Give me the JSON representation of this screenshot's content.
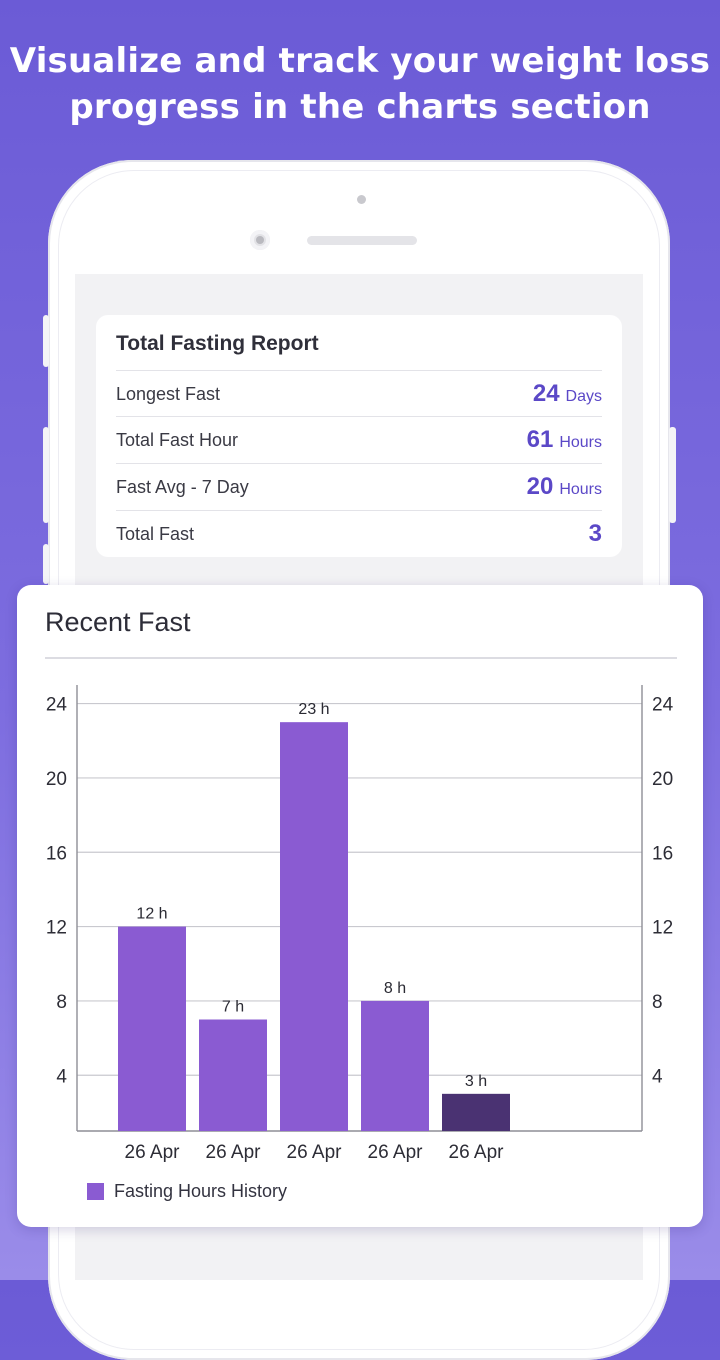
{
  "headline": {
    "line1": "Visualize and track your weight loss",
    "line2": "progress in the charts section"
  },
  "report": {
    "title": "Total Fasting Report",
    "rows": [
      {
        "label": "Longest Fast",
        "value": "24",
        "unit": "Days"
      },
      {
        "label": "Total Fast Hour",
        "value": "61",
        "unit": "Hours"
      },
      {
        "label": "Fast Avg - 7 Day",
        "value": "20",
        "unit": "Hours"
      },
      {
        "label": "Total Fast",
        "value": "3",
        "unit": ""
      }
    ]
  },
  "chart_card": {
    "title": "Recent Fast"
  },
  "colors": {
    "accent": "#5b48c7",
    "bar": "#8a5bd2",
    "bar_latest": "#4a3272",
    "background_top": "#6b5bd6"
  },
  "chart_data": {
    "type": "bar",
    "categories": [
      "26 Apr",
      "26 Apr",
      "26 Apr",
      "26 Apr",
      "26 Apr"
    ],
    "values": [
      12,
      7,
      23,
      8,
      3
    ],
    "data_labels": [
      "12 h",
      "7 h",
      "23 h",
      "8 h",
      "3 h"
    ],
    "highlight_index": 4,
    "y_ticks": [
      4,
      8,
      12,
      16,
      20,
      24
    ],
    "ylim": [
      1,
      25
    ],
    "dual_y_axis": true,
    "grid": true,
    "legend": {
      "label": "Fasting Hours History",
      "position": "bottom-left"
    },
    "title": "",
    "xlabel": "",
    "ylabel": ""
  }
}
